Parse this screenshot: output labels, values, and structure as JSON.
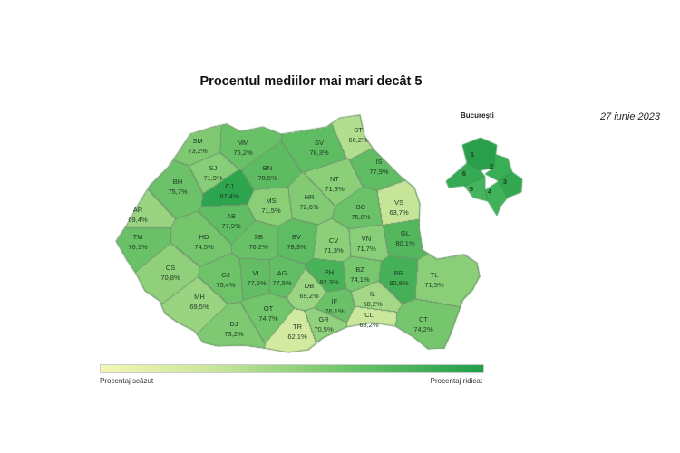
{
  "title": "Procentul mediilor mai mari decât 5",
  "date": "27 iunie 2023",
  "inset": {
    "title": "București",
    "sectors": [
      {
        "label": "1",
        "color": "#2a9f4a"
      },
      {
        "label": "2",
        "color": "#3aae55"
      },
      {
        "label": "3",
        "color": "#33a852"
      },
      {
        "label": "4",
        "color": "#40b25a"
      },
      {
        "label": "5",
        "color": "#45b45c"
      },
      {
        "label": "6",
        "color": "#36aa54"
      }
    ]
  },
  "legend": {
    "low_label": "Procentaj scăzut",
    "high_label": "Procentaj ridicat",
    "low_color": "#f4f7b4",
    "high_color": "#1f9e4a"
  },
  "counties": [
    {
      "code": "SM",
      "value": "73,2%"
    },
    {
      "code": "MM",
      "value": "76,2%"
    },
    {
      "code": "SJ",
      "value": "71,9%"
    },
    {
      "code": "BN",
      "value": "78,5%"
    },
    {
      "code": "CJ",
      "value": "87,4%"
    },
    {
      "code": "BH",
      "value": "75,7%"
    },
    {
      "code": "AR",
      "value": "69,4%"
    },
    {
      "code": "AB",
      "value": "77,9%"
    },
    {
      "code": "MS",
      "value": "71,5%"
    },
    {
      "code": "HR",
      "value": "72,6%"
    },
    {
      "code": "SV",
      "value": "78,3%"
    },
    {
      "code": "BT",
      "value": "66,2%"
    },
    {
      "code": "NT",
      "value": "71,3%"
    },
    {
      "code": "IS",
      "value": "77,9%"
    },
    {
      "code": "BC",
      "value": "75,8%"
    },
    {
      "code": "VS",
      "value": "63,7%"
    },
    {
      "code": "TM",
      "value": "76,1%"
    },
    {
      "code": "HD",
      "value": "74,5%"
    },
    {
      "code": "SB",
      "value": "76,2%"
    },
    {
      "code": "BV",
      "value": "78,3%"
    },
    {
      "code": "CV",
      "value": "71,3%"
    },
    {
      "code": "VN",
      "value": "71,7%"
    },
    {
      "code": "GL",
      "value": "80,1%"
    },
    {
      "code": "CS",
      "value": "70,8%"
    },
    {
      "code": "GJ",
      "value": "75,4%"
    },
    {
      "code": "VL",
      "value": "77,6%"
    },
    {
      "code": "AG",
      "value": "77,5%"
    },
    {
      "code": "DB",
      "value": "69,2%"
    },
    {
      "code": "PH",
      "value": "82,3%"
    },
    {
      "code": "BZ",
      "value": "74,1%"
    },
    {
      "code": "BR",
      "value": "82,8%"
    },
    {
      "code": "TL",
      "value": "71,5%"
    },
    {
      "code": "MH",
      "value": "69,5%"
    },
    {
      "code": "DJ",
      "value": "73,2%"
    },
    {
      "code": "OT",
      "value": "74,7%"
    },
    {
      "code": "TR",
      "value": "62,1%"
    },
    {
      "code": "GR",
      "value": "70,5%"
    },
    {
      "code": "IF",
      "value": "76,1%"
    },
    {
      "code": "IL",
      "value": "68,2%"
    },
    {
      "code": "CL",
      "value": "63,2%"
    },
    {
      "code": "CT",
      "value": "74,2%"
    }
  ]
}
